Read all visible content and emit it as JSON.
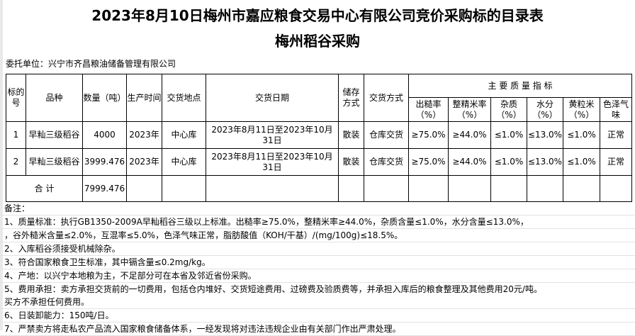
{
  "title": "2023年8月10日梅州市嘉应粮食交易中心有限公司竞价采购标的目录表",
  "subtitle": "梅州稻谷采购",
  "client": "委托单位：兴宁市齐昌粮油储备管理有限公司",
  "header": {
    "lot_no": "标的号",
    "variety": "品种",
    "quantity": "数量（吨）",
    "prod_time": "生产时间",
    "location": "交货地点",
    "date": "交货日期",
    "storage": "储存方式",
    "delivery": "交货方式",
    "quality": "主 要 质 量 指 标",
    "q": [
      "出糙率（%）",
      "整精米率（%）",
      "杂质（%）",
      "水分（%）",
      "黄粒米（%）",
      "色泽气味"
    ]
  },
  "rows": [
    {
      "no": "1",
      "variety": "早籼三级稻谷",
      "qty": "4000",
      "year": "2023年",
      "loc": "中心库",
      "date": "2023年8月11日至2023年10月31日",
      "storage": "散装",
      "delivery": "仓库交货",
      "q": [
        "≥75.0%",
        "≥44.0%",
        "≤1.0%",
        "≤13.0%",
        "≤1.0%",
        "正常"
      ]
    },
    {
      "no": "2",
      "variety": "早籼三级稻谷",
      "qty": "3999.476",
      "year": "2023年",
      "loc": "中心库",
      "date": "2023年8月11日至2023年10月31日",
      "storage": "散装",
      "delivery": "仓库交货",
      "q": [
        "≥75.0%",
        "≥44.0%",
        "≤1.0%",
        "≤13.0%",
        "≤1.0%",
        "正常"
      ]
    }
  ],
  "total": {
    "label": "合 计",
    "qty": "7999.476"
  },
  "notes": [
    "备注：",
    "1、质量标准：执行GB1350-2009A早籼稻谷三级以上标准。出糙率≥75.0%，整精米率≥44.0%，杂质含量≤1.0%，水分含量≤13.0%，",
    "，谷外糙米含量≤2.0%，互混率≤5.0%，色泽气味正常，脂肪酸值（KOH/干基）/(mg/100g)≤18.5%。",
    "2、入库稻谷须接受机械除杂。",
    "3、符合国家粮食卫生标准，其中镉含量≤0.2mg/kg。",
    "4、产地：以兴宁本地粮为主，不足部分可在本省及邻近省份采购。",
    "5、费用承担：卖方承担交货前的一切费用，包括仓内堆好、交货短途费用、过磅费及验质费等，并承担入库后的粮食整理及其他费用20元/吨。",
    "买方不承担任何费用。",
    "6、日装卸能力：150吨/日。",
    "7、严禁卖方将走私农产品流入国家粮食储备体系，一经发现将对违法违规企业由有关部门作出严肃处理。"
  ]
}
